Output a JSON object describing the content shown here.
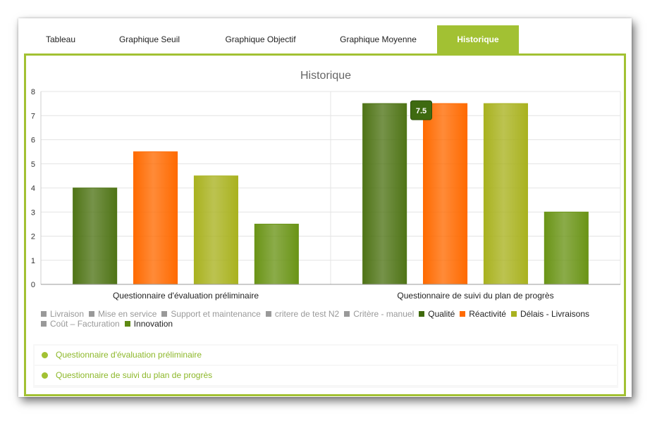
{
  "tabs": [
    {
      "label": "Tableau",
      "active": false
    },
    {
      "label": "Graphique Seuil",
      "active": false
    },
    {
      "label": "Graphique Objectif",
      "active": false
    },
    {
      "label": "Graphique Moyenne",
      "active": false
    },
    {
      "label": "Historique",
      "active": true
    }
  ],
  "colors": {
    "accent": "#a2c133",
    "disabled_legend": "#999999"
  },
  "chart_data": {
    "type": "bar",
    "title": "Historique",
    "categories": [
      "Questionnaire d'évaluation préliminaire",
      "Questionnaire de suivi du plan de progrès"
    ],
    "ylim": [
      0,
      8
    ],
    "yticks": [
      0,
      1,
      2,
      3,
      4,
      5,
      6,
      7,
      8
    ],
    "grid": true,
    "legend_position": "bottom-left",
    "series": [
      {
        "name": "Qualité",
        "color": "#4f7416",
        "values": [
          4,
          7.5
        ]
      },
      {
        "name": "Réactivité",
        "color": "#ff6a00",
        "values": [
          5.5,
          7.5
        ]
      },
      {
        "name": "Délais - Livraisons",
        "color": "#a9b21f",
        "values": [
          4.5,
          7.5
        ]
      },
      {
        "name": "Innovation",
        "color": "#6a9416",
        "values": [
          2.5,
          3
        ]
      }
    ],
    "legend": [
      {
        "name": "Livraison",
        "visible": false,
        "color": "#999999"
      },
      {
        "name": "Mise en service",
        "visible": false,
        "color": "#999999"
      },
      {
        "name": "Support et maintenance",
        "visible": false,
        "color": "#999999"
      },
      {
        "name": "critere de test N2",
        "visible": false,
        "color": "#999999"
      },
      {
        "name": "Critère - manuel",
        "visible": false,
        "color": "#999999"
      },
      {
        "name": "Qualité",
        "visible": true,
        "color": "#3f6a0c"
      },
      {
        "name": "Réactivité",
        "visible": true,
        "color": "#ff6a00"
      },
      {
        "name": "Délais - Livraisons",
        "visible": true,
        "color": "#a9b21f"
      },
      {
        "name": "Coût – Facturation",
        "visible": false,
        "color": "#999999"
      },
      {
        "name": "Innovation",
        "visible": true,
        "color": "#5e8a12"
      }
    ],
    "tooltip": {
      "value": "7.5",
      "series": "Réactivité",
      "category_index": 1
    }
  },
  "questionnaires": [
    {
      "label": "Questionnaire d'évaluation préliminaire"
    },
    {
      "label": "Questionnaire de suivi du plan de progrès"
    }
  ]
}
